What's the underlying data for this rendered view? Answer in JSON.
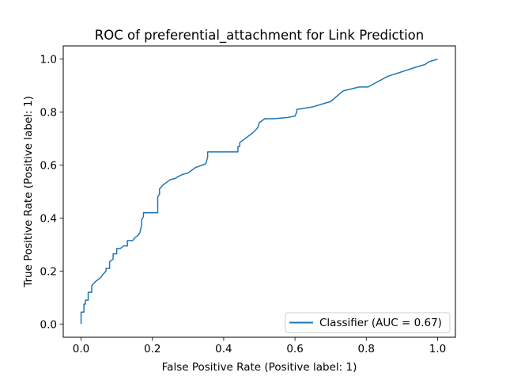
{
  "chart_data": {
    "type": "line",
    "title": "ROC of preferential_attachment for Link Prediction",
    "xlabel": "False Positive Rate (Positive label: 1)",
    "ylabel": "True Positive Rate (Positive label: 1)",
    "xlim": [
      -0.05,
      1.05
    ],
    "ylim": [
      -0.05,
      1.05
    ],
    "x_ticks": [
      0.0,
      0.2,
      0.4,
      0.6,
      0.8,
      1.0
    ],
    "y_ticks": [
      0.0,
      0.2,
      0.4,
      0.6,
      0.8,
      1.0
    ],
    "x_tick_labels": [
      "0.0",
      "0.2",
      "0.4",
      "0.6",
      "0.8",
      "1.0"
    ],
    "y_tick_labels": [
      "0.0",
      "0.2",
      "0.4",
      "0.6",
      "0.8",
      "1.0"
    ],
    "grid": false,
    "legend_position": "lower right",
    "series": [
      {
        "name": "Classifier (AUC = 0.67)",
        "color": "#1f77b4",
        "x": [
          0.0,
          0.0,
          0.008,
          0.008,
          0.012,
          0.012,
          0.02,
          0.02,
          0.03,
          0.03,
          0.04,
          0.045,
          0.055,
          0.06,
          0.07,
          0.07,
          0.08,
          0.08,
          0.09,
          0.09,
          0.1,
          0.1,
          0.11,
          0.12,
          0.13,
          0.13,
          0.145,
          0.15,
          0.16,
          0.165,
          0.17,
          0.17,
          0.175,
          0.175,
          0.2,
          0.215,
          0.215,
          0.22,
          0.22,
          0.23,
          0.24,
          0.25,
          0.265,
          0.27,
          0.285,
          0.3,
          0.32,
          0.35,
          0.355,
          0.355,
          0.38,
          0.4,
          0.44,
          0.44,
          0.445,
          0.445,
          0.45,
          0.48,
          0.495,
          0.5,
          0.515,
          0.54,
          0.58,
          0.6,
          0.605,
          0.605,
          0.65,
          0.7,
          0.735,
          0.78,
          0.805,
          0.86,
          0.94,
          0.965,
          0.975,
          1.0
        ],
        "y": [
          0.0,
          0.045,
          0.045,
          0.075,
          0.075,
          0.09,
          0.09,
          0.12,
          0.12,
          0.145,
          0.16,
          0.165,
          0.175,
          0.185,
          0.2,
          0.21,
          0.21,
          0.235,
          0.245,
          0.265,
          0.265,
          0.285,
          0.285,
          0.295,
          0.295,
          0.315,
          0.315,
          0.325,
          0.335,
          0.345,
          0.375,
          0.395,
          0.405,
          0.42,
          0.42,
          0.42,
          0.48,
          0.49,
          0.51,
          0.525,
          0.535,
          0.545,
          0.55,
          0.555,
          0.565,
          0.57,
          0.59,
          0.605,
          0.63,
          0.65,
          0.65,
          0.65,
          0.65,
          0.67,
          0.67,
          0.685,
          0.69,
          0.72,
          0.74,
          0.76,
          0.775,
          0.775,
          0.78,
          0.785,
          0.8,
          0.81,
          0.82,
          0.84,
          0.88,
          0.895,
          0.895,
          0.935,
          0.97,
          0.98,
          0.99,
          1.0
        ]
      }
    ]
  }
}
